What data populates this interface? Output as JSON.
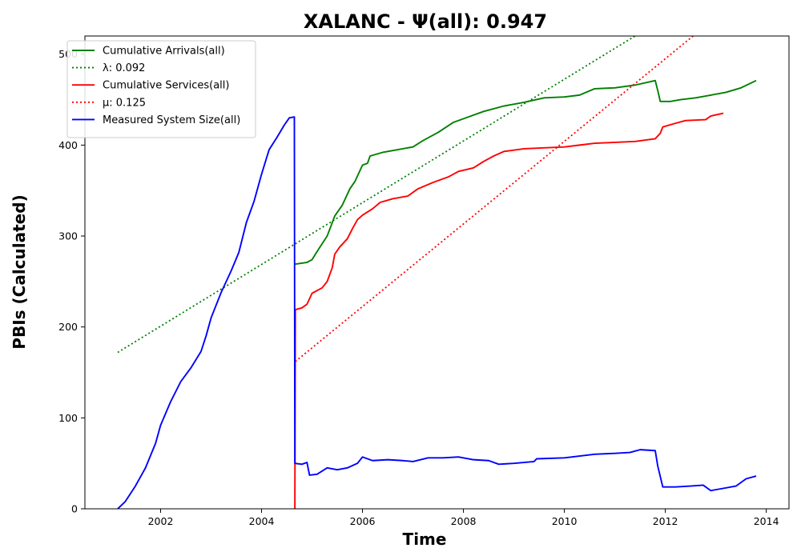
{
  "chart_data": {
    "type": "line",
    "title": "XALANC -  Ψ(all): 0.947",
    "xlabel": "Time",
    "ylabel": "PBIs (Calculated)",
    "xlim": [
      2000.5,
      2014.45
    ],
    "ylim": [
      0,
      520
    ],
    "xticks": [
      2002,
      2004,
      2006,
      2008,
      2010,
      2012,
      2014
    ],
    "yticks": [
      0,
      100,
      200,
      300,
      400,
      500
    ],
    "grid": false,
    "legend_position": "upper-left",
    "series": [
      {
        "name": "Cumulative Arrivals(all)",
        "color": "#008000",
        "style": "solid",
        "points": [
          [
            2004.65,
            269
          ],
          [
            2004.9,
            271
          ],
          [
            2005.0,
            274
          ],
          [
            2005.1,
            283
          ],
          [
            2005.3,
            300
          ],
          [
            2005.45,
            322
          ],
          [
            2005.6,
            334
          ],
          [
            2005.75,
            352
          ],
          [
            2005.85,
            360
          ],
          [
            2006.0,
            378
          ],
          [
            2006.1,
            380
          ],
          [
            2006.15,
            388
          ],
          [
            2006.4,
            392
          ],
          [
            2006.7,
            395
          ],
          [
            2007.0,
            398
          ],
          [
            2007.2,
            405
          ],
          [
            2007.5,
            414
          ],
          [
            2007.8,
            425
          ],
          [
            2008.1,
            431
          ],
          [
            2008.4,
            437
          ],
          [
            2008.8,
            443
          ],
          [
            2009.2,
            447
          ],
          [
            2009.6,
            452
          ],
          [
            2010.0,
            453
          ],
          [
            2010.3,
            455
          ],
          [
            2010.6,
            462
          ],
          [
            2011.0,
            463
          ],
          [
            2011.4,
            466
          ],
          [
            2011.8,
            471
          ],
          [
            2011.85,
            460
          ],
          [
            2011.9,
            448
          ],
          [
            2012.1,
            448
          ],
          [
            2012.3,
            450
          ],
          [
            2012.6,
            452
          ],
          [
            2012.9,
            455
          ],
          [
            2013.2,
            458
          ],
          [
            2013.5,
            463
          ],
          [
            2013.8,
            471
          ]
        ]
      },
      {
        "name": "λ: 0.092",
        "color": "#008000",
        "style": "dotted",
        "points": [
          [
            2001.15,
            172
          ],
          [
            2011.4,
            520
          ]
        ]
      },
      {
        "name": "Cumulative Services(all)",
        "color": "#ff0000",
        "style": "solid",
        "points": [
          [
            2004.65,
            0
          ],
          [
            2004.66,
            0
          ],
          [
            2004.67,
            219
          ],
          [
            2004.8,
            221
          ],
          [
            2004.9,
            225
          ],
          [
            2005.0,
            237
          ],
          [
            2005.2,
            243
          ],
          [
            2005.3,
            250
          ],
          [
            2005.4,
            265
          ],
          [
            2005.45,
            280
          ],
          [
            2005.55,
            288
          ],
          [
            2005.7,
            297
          ],
          [
            2005.8,
            308
          ],
          [
            2005.9,
            318
          ],
          [
            2006.0,
            323
          ],
          [
            2006.2,
            330
          ],
          [
            2006.35,
            337
          ],
          [
            2006.6,
            341
          ],
          [
            2006.9,
            344
          ],
          [
            2007.1,
            352
          ],
          [
            2007.4,
            359
          ],
          [
            2007.7,
            365
          ],
          [
            2007.9,
            371
          ],
          [
            2008.2,
            375
          ],
          [
            2008.4,
            382
          ],
          [
            2008.6,
            388
          ],
          [
            2008.8,
            393
          ],
          [
            2009.2,
            396
          ],
          [
            2009.6,
            397
          ],
          [
            2010.0,
            398
          ],
          [
            2010.3,
            400
          ],
          [
            2010.6,
            402
          ],
          [
            2011.0,
            403
          ],
          [
            2011.4,
            404
          ],
          [
            2011.8,
            407
          ],
          [
            2011.9,
            413
          ],
          [
            2011.95,
            420
          ],
          [
            2012.2,
            424
          ],
          [
            2012.4,
            427
          ],
          [
            2012.8,
            428
          ],
          [
            2012.9,
            432
          ],
          [
            2013.15,
            435
          ]
        ]
      },
      {
        "name": "μ: 0.125",
        "color": "#ff0000",
        "style": "dotted",
        "points": [
          [
            2004.67,
            162
          ],
          [
            2012.55,
            520
          ]
        ]
      },
      {
        "name": "Measured System Size(all)",
        "color": "#0000ff",
        "style": "solid",
        "points": [
          [
            2001.15,
            0
          ],
          [
            2001.3,
            8
          ],
          [
            2001.5,
            25
          ],
          [
            2001.7,
            45
          ],
          [
            2001.9,
            72
          ],
          [
            2002.0,
            92
          ],
          [
            2002.2,
            118
          ],
          [
            2002.4,
            140
          ],
          [
            2002.6,
            155
          ],
          [
            2002.8,
            173
          ],
          [
            2002.9,
            190
          ],
          [
            2003.0,
            210
          ],
          [
            2003.2,
            238
          ],
          [
            2003.4,
            262
          ],
          [
            2003.55,
            282
          ],
          [
            2003.7,
            315
          ],
          [
            2003.85,
            338
          ],
          [
            2004.0,
            368
          ],
          [
            2004.15,
            395
          ],
          [
            2004.3,
            408
          ],
          [
            2004.45,
            422
          ],
          [
            2004.55,
            430
          ],
          [
            2004.65,
            431
          ],
          [
            2004.66,
            50
          ],
          [
            2004.8,
            49
          ],
          [
            2004.9,
            51
          ],
          [
            2004.95,
            37
          ],
          [
            2005.1,
            38
          ],
          [
            2005.3,
            45
          ],
          [
            2005.5,
            43
          ],
          [
            2005.7,
            45
          ],
          [
            2005.9,
            50
          ],
          [
            2006.0,
            57
          ],
          [
            2006.2,
            53
          ],
          [
            2006.5,
            54
          ],
          [
            2006.8,
            53
          ],
          [
            2007.0,
            52
          ],
          [
            2007.3,
            56
          ],
          [
            2007.6,
            56
          ],
          [
            2007.9,
            57
          ],
          [
            2008.2,
            54
          ],
          [
            2008.5,
            53
          ],
          [
            2008.7,
            49
          ],
          [
            2009.0,
            50
          ],
          [
            2009.4,
            52
          ],
          [
            2009.45,
            55
          ],
          [
            2010.0,
            56
          ],
          [
            2010.3,
            58
          ],
          [
            2010.6,
            60
          ],
          [
            2011.0,
            61
          ],
          [
            2011.3,
            62
          ],
          [
            2011.5,
            65
          ],
          [
            2011.8,
            64
          ],
          [
            2011.85,
            47
          ],
          [
            2011.95,
            24
          ],
          [
            2012.2,
            24
          ],
          [
            2012.5,
            25
          ],
          [
            2012.75,
            26
          ],
          [
            2012.9,
            20
          ],
          [
            2013.1,
            22
          ],
          [
            2013.4,
            25
          ],
          [
            2013.6,
            33
          ],
          [
            2013.8,
            36
          ]
        ]
      }
    ]
  }
}
